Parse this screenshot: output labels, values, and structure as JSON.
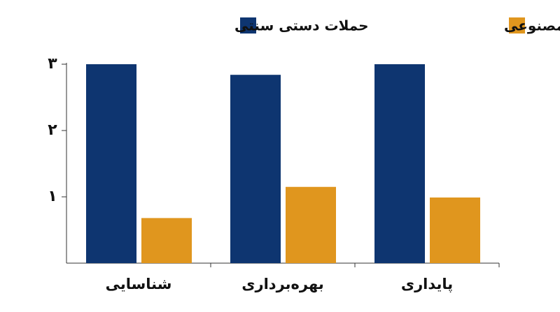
{
  "chart_data": {
    "type": "bar",
    "categories": [
      "شناسایی",
      "بهره‌برداری",
      "پایداری"
    ],
    "series": [
      {
        "name": "حملات دستی سنتی",
        "color": "#0e3570",
        "values": [
          3,
          2.84,
          3
        ]
      },
      {
        "name": "حملات خودکار هوش مصنوعی",
        "color": "#e0961e",
        "values": [
          0.68,
          1.15,
          0.99
        ]
      }
    ],
    "ylim": [
      0,
      3
    ],
    "yticks": [
      {
        "value": 1,
        "label": "۱"
      },
      {
        "value": 2,
        "label": "۲"
      },
      {
        "value": 3,
        "label": "۳"
      }
    ],
    "grid": false
  }
}
